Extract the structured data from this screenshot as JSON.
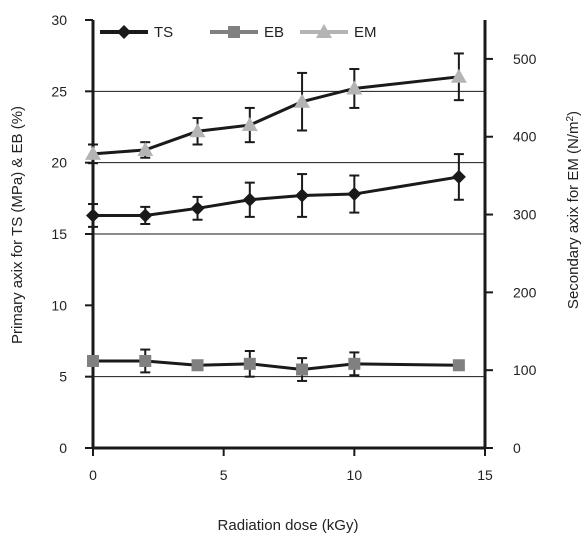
{
  "chart_data": {
    "type": "line",
    "title": "",
    "xlabel": "Radiation dose (kGy)",
    "ylabel_left": "Primary axix for TS (MPa) & EB (%)",
    "ylabel_right": "Secondary axix for EM (N/m²)",
    "xlim": [
      0,
      15
    ],
    "ylim_left": [
      0,
      30
    ],
    "ylim_right": [
      0,
      550
    ],
    "x_ticks": [
      "0",
      "5",
      "10",
      "15"
    ],
    "x_tick_values": [
      0,
      5,
      10,
      15
    ],
    "y_left_ticks": [
      "0",
      "5",
      "10",
      "15",
      "20",
      "25",
      "30"
    ],
    "y_left_tick_values": [
      0,
      5,
      10,
      15,
      20,
      25,
      30
    ],
    "y_right_ticks": [
      "0",
      "100",
      "200",
      "300",
      "400",
      "500"
    ],
    "y_right_tick_values": [
      0,
      100,
      200,
      300,
      400,
      500
    ],
    "gridlines_left": [
      5,
      15,
      20,
      25
    ],
    "legend_position": "top-left",
    "series": [
      {
        "name": "TS",
        "axis": "left",
        "marker": "diamond",
        "color": "#1a1a1a",
        "x": [
          0,
          2,
          4,
          6,
          8,
          10,
          14
        ],
        "y": [
          16.3,
          16.3,
          16.8,
          17.4,
          17.7,
          17.8,
          19.0
        ],
        "err": [
          0.8,
          0.6,
          0.8,
          1.2,
          1.5,
          1.3,
          1.6
        ]
      },
      {
        "name": "EB",
        "axis": "left",
        "marker": "square",
        "color": "#808080",
        "x": [
          0,
          2,
          4,
          6,
          8,
          10,
          14
        ],
        "y": [
          6.1,
          6.1,
          5.8,
          5.9,
          5.5,
          5.9,
          5.8
        ],
        "err": [
          0.0,
          0.8,
          0.0,
          0.9,
          0.8,
          0.8,
          0.0
        ]
      },
      {
        "name": "EM",
        "axis": "right",
        "marker": "triangle",
        "color": "#b4b4b4",
        "line_color": "#1a1a1a",
        "x": [
          0,
          2,
          4,
          6,
          8,
          10,
          14
        ],
        "y": [
          378,
          383,
          407,
          415,
          445,
          462,
          477
        ],
        "err": [
          12,
          10,
          17,
          22,
          37,
          25,
          30
        ]
      }
    ]
  }
}
